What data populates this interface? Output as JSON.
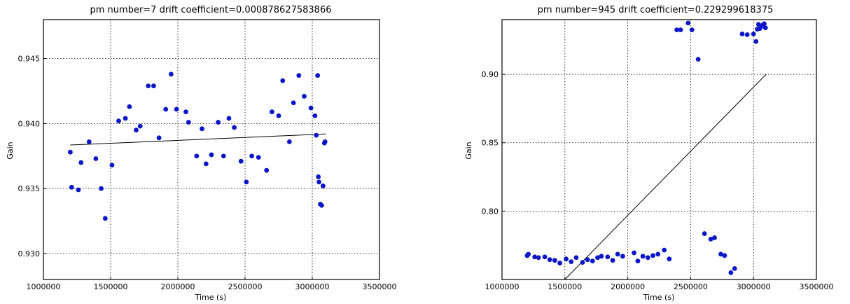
{
  "chart_data": [
    {
      "type": "scatter",
      "title": "pm number=7  drift coefficient=0.000878627583866",
      "xlabel": "Time (s)",
      "ylabel": "Gain",
      "xlim": [
        1000000,
        3500000
      ],
      "ylim": [
        0.928,
        0.948
      ],
      "xticks": [
        1000000,
        1500000,
        2000000,
        2500000,
        3000000,
        3500000
      ],
      "xtick_labels": [
        "1000000",
        "1500000",
        "2000000",
        "2500000",
        "3000000",
        "3500000"
      ],
      "yticks": [
        0.93,
        0.935,
        0.94,
        0.945
      ],
      "ytick_labels": [
        "0.930",
        "0.935",
        "0.940",
        "0.945"
      ],
      "grid": true,
      "marker_color": "#0a16c8",
      "line_color": "#000000",
      "points": [
        [
          1200000,
          0.9378
        ],
        [
          1210000,
          0.9351
        ],
        [
          1260000,
          0.9349
        ],
        [
          1280000,
          0.937
        ],
        [
          1340000,
          0.9386
        ],
        [
          1390000,
          0.9373
        ],
        [
          1430000,
          0.935
        ],
        [
          1460000,
          0.9327
        ],
        [
          1510000,
          0.9368
        ],
        [
          1560000,
          0.9402
        ],
        [
          1610000,
          0.9404
        ],
        [
          1640000,
          0.9413
        ],
        [
          1690000,
          0.9395
        ],
        [
          1720000,
          0.9398
        ],
        [
          1780000,
          0.9429
        ],
        [
          1820000,
          0.9429
        ],
        [
          1860000,
          0.9389
        ],
        [
          1910000,
          0.9411
        ],
        [
          1950000,
          0.9438
        ],
        [
          1990000,
          0.9411
        ],
        [
          2060000,
          0.9409
        ],
        [
          2080000,
          0.9401
        ],
        [
          2140000,
          0.9375
        ],
        [
          2180000,
          0.9396
        ],
        [
          2210000,
          0.9369
        ],
        [
          2250000,
          0.9376
        ],
        [
          2300000,
          0.9401
        ],
        [
          2340000,
          0.9375
        ],
        [
          2380000,
          0.9404
        ],
        [
          2420000,
          0.9397
        ],
        [
          2470000,
          0.9371
        ],
        [
          2510000,
          0.9355
        ],
        [
          2550000,
          0.9375
        ],
        [
          2600000,
          0.9374
        ],
        [
          2660000,
          0.9364
        ],
        [
          2700000,
          0.9409
        ],
        [
          2750000,
          0.9406
        ],
        [
          2780000,
          0.9433
        ],
        [
          2830000,
          0.9386
        ],
        [
          2860000,
          0.9416
        ],
        [
          2900000,
          0.9437
        ],
        [
          2940000,
          0.9421
        ],
        [
          2990000,
          0.9412
        ],
        [
          3020000,
          0.9406
        ],
        [
          3030000,
          0.9391
        ],
        [
          3040000,
          0.9437
        ],
        [
          3045000,
          0.9359
        ],
        [
          3050000,
          0.9355
        ],
        [
          3060000,
          0.9338
        ],
        [
          3070000,
          0.9337
        ],
        [
          3080000,
          0.9352
        ],
        [
          3090000,
          0.9385
        ],
        [
          3095000,
          0.9386
        ]
      ],
      "fit_line": {
        "x": [
          1200000,
          3100000
        ],
        "y": [
          0.93835,
          0.9392
        ]
      }
    },
    {
      "type": "scatter",
      "title": "pm number=945  drift coefficient=0.229299618375",
      "xlabel": "Time (s)",
      "ylabel": "Gain",
      "xlim": [
        1000000,
        3500000
      ],
      "ylim": [
        0.75,
        0.94
      ],
      "xticks": [
        1000000,
        1500000,
        2000000,
        2500000,
        3000000,
        3500000
      ],
      "xtick_labels": [
        "1000000",
        "1500000",
        "2000000",
        "2500000",
        "3000000",
        "3500000"
      ],
      "yticks": [
        0.8,
        0.85,
        0.9
      ],
      "ytick_labels": [
        "0.80",
        "0.85",
        "0.90"
      ],
      "grid": true,
      "marker_color": "#0a16c8",
      "line_color": "#000000",
      "points": [
        [
          1200000,
          0.7675
        ],
        [
          1210000,
          0.7685
        ],
        [
          1260000,
          0.7665
        ],
        [
          1290000,
          0.766
        ],
        [
          1340000,
          0.7665
        ],
        [
          1380000,
          0.7645
        ],
        [
          1420000,
          0.764
        ],
        [
          1460000,
          0.762
        ],
        [
          1510000,
          0.765
        ],
        [
          1550000,
          0.763
        ],
        [
          1590000,
          0.766
        ],
        [
          1640000,
          0.7625
        ],
        [
          1680000,
          0.7645
        ],
        [
          1720000,
          0.7635
        ],
        [
          1760000,
          0.766
        ],
        [
          1790000,
          0.767
        ],
        [
          1840000,
          0.7665
        ],
        [
          1880000,
          0.764
        ],
        [
          1920000,
          0.7685
        ],
        [
          1960000,
          0.767
        ],
        [
          2050000,
          0.7695
        ],
        [
          2080000,
          0.7635
        ],
        [
          2120000,
          0.767
        ],
        [
          2160000,
          0.766
        ],
        [
          2200000,
          0.7675
        ],
        [
          2240000,
          0.7685
        ],
        [
          2290000,
          0.7715
        ],
        [
          2330000,
          0.765
        ],
        [
          2390000,
          0.9325
        ],
        [
          2420000,
          0.9325
        ],
        [
          2480000,
          0.9375
        ],
        [
          2510000,
          0.9325
        ],
        [
          2560000,
          0.911
        ],
        [
          2610000,
          0.7835
        ],
        [
          2660000,
          0.7795
        ],
        [
          2690000,
          0.7805
        ],
        [
          2740000,
          0.7685
        ],
        [
          2770000,
          0.7675
        ],
        [
          2820000,
          0.755
        ],
        [
          2850000,
          0.758
        ],
        [
          2910000,
          0.9295
        ],
        [
          2950000,
          0.929
        ],
        [
          3000000,
          0.9295
        ],
        [
          3020000,
          0.924
        ],
        [
          3030000,
          0.933
        ],
        [
          3040000,
          0.9365
        ],
        [
          3050000,
          0.9335
        ],
        [
          3060000,
          0.935
        ],
        [
          3075000,
          0.936
        ],
        [
          3085000,
          0.937
        ],
        [
          3095000,
          0.934
        ]
      ],
      "fit_line": {
        "x": [
          1500000,
          3100000
        ],
        "y": [
          0.75,
          0.9
        ]
      }
    }
  ]
}
